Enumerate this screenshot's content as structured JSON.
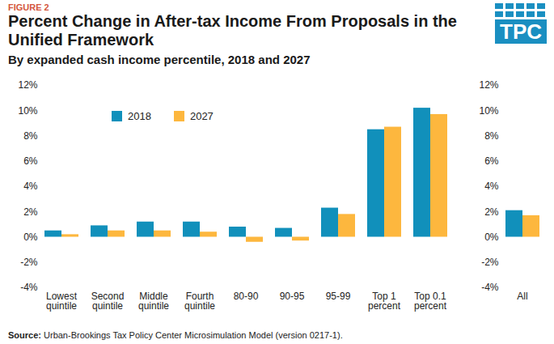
{
  "chart_data": {
    "type": "bar",
    "figure_label": "FIGURE 2",
    "title": "Percent Change in After-tax Income From Proposals in the Unified Framework",
    "subtitle": "By expanded cash income percentile, 2018 and 2027",
    "logo": "TPC",
    "source": "Source: Urban-Brookings Tax Policy Center Microsimulation Model (version 0217-1).",
    "categories": [
      "Lowest quintile",
      "Second quintile",
      "Middle quintile",
      "Fourth quintile",
      "80-90",
      "90-95",
      "95-99",
      "Top 1 percent",
      "Top 0.1 percent",
      null,
      "All"
    ],
    "series": [
      {
        "name": "2018",
        "color": "#1190bb",
        "values": [
          0.5,
          0.9,
          1.2,
          1.2,
          0.8,
          0.7,
          2.3,
          8.5,
          10.2,
          null,
          2.1
        ]
      },
      {
        "name": "2027",
        "color": "#fdb73e",
        "values": [
          0.2,
          0.5,
          0.5,
          0.4,
          -0.4,
          -0.3,
          1.8,
          8.7,
          9.7,
          null,
          1.7
        ]
      }
    ],
    "ylim": [
      -4,
      12
    ],
    "yticks": [
      {
        "value": -4,
        "label": "-4%"
      },
      {
        "value": -2,
        "label": "-2%"
      },
      {
        "value": 0,
        "label": "0%"
      },
      {
        "value": 2,
        "label": "2%"
      },
      {
        "value": 4,
        "label": "4%"
      },
      {
        "value": 6,
        "label": "6%"
      },
      {
        "value": 8,
        "label": "8%"
      },
      {
        "value": 10,
        "label": "10%"
      },
      {
        "value": 12,
        "label": "12%"
      }
    ],
    "grid": false,
    "legend": "top-left",
    "data_labels": false
  }
}
